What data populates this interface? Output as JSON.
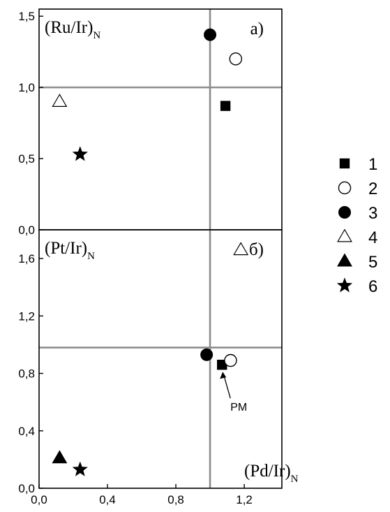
{
  "chart_data": [
    {
      "type": "scatter",
      "panel_label": "а)",
      "ylabel": "(Ru/Ir)",
      "ylabel_sub": "N",
      "ylim": [
        0,
        1.55
      ],
      "xlim": [
        0,
        1.42
      ],
      "yticks": [
        "0,0",
        "0,5",
        "1,0",
        "1,5"
      ],
      "ytick_values": [
        0,
        0.5,
        1.0,
        1.5
      ],
      "reference_lines": {
        "x": 1.0,
        "y": 1.0,
        "color": "#8c8c8c"
      },
      "points": [
        {
          "series": "1",
          "x": 1.09,
          "y": 0.87
        },
        {
          "series": "2",
          "x": 1.15,
          "y": 1.2
        },
        {
          "series": "3",
          "x": 1.0,
          "y": 1.37
        },
        {
          "series": "4",
          "x": 0.12,
          "y": 0.9
        },
        {
          "series": "6",
          "x": 0.24,
          "y": 0.53
        }
      ]
    },
    {
      "type": "scatter",
      "panel_label": "б)",
      "ylabel": "(Pt/Ir)",
      "ylabel_sub": "N",
      "xlabel": "(Pd/Ir)",
      "xlabel_sub": "N",
      "ylim": [
        0,
        1.8
      ],
      "xlim": [
        0,
        1.42
      ],
      "yticks": [
        "0,0",
        "0,4",
        "0,8",
        "1,2",
        "1,6"
      ],
      "ytick_values": [
        0,
        0.4,
        0.8,
        1.2,
        1.6
      ],
      "xticks": [
        "0,0",
        "0,4",
        "0,8",
        "1,2"
      ],
      "xtick_values": [
        0,
        0.4,
        0.8,
        1.2
      ],
      "reference_lines": {
        "x": 1.0,
        "y": 0.98,
        "color": "#8c8c8c"
      },
      "points": [
        {
          "series": "1",
          "x": 1.07,
          "y": 0.86
        },
        {
          "series": "2",
          "x": 1.12,
          "y": 0.89
        },
        {
          "series": "3",
          "x": 0.98,
          "y": 0.93
        },
        {
          "series": "4",
          "x": 1.18,
          "y": 1.66
        },
        {
          "series": "5",
          "x": 0.12,
          "y": 0.21
        },
        {
          "series": "6",
          "x": 0.24,
          "y": 0.13
        }
      ],
      "annotation": {
        "text": "PM",
        "target_series": "1"
      }
    }
  ],
  "legend": {
    "placement": "right",
    "items": [
      {
        "id": "1",
        "label": "1",
        "marker": "filled-square"
      },
      {
        "id": "2",
        "label": "2",
        "marker": "open-circle"
      },
      {
        "id": "3",
        "label": "3",
        "marker": "filled-circle"
      },
      {
        "id": "4",
        "label": "4",
        "marker": "open-triangle"
      },
      {
        "id": "5",
        "label": "5",
        "marker": "filled-triangle"
      },
      {
        "id": "6",
        "label": "6",
        "marker": "filled-star"
      }
    ]
  }
}
